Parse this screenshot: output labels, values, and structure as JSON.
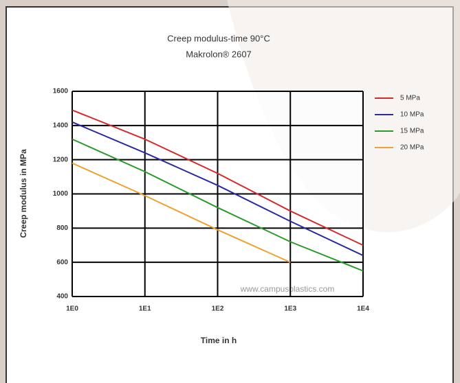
{
  "chart_data": {
    "type": "line",
    "title": "Creep modulus-time 90°C",
    "subtitle": "Makrolon® 2607",
    "x_label": "Time in h",
    "y_label": "Creep modulus in MPa",
    "watermark": "www.campusplastics.com",
    "x": [
      1,
      10,
      100,
      1000,
      10000
    ],
    "x_scale": "log",
    "xlim": [
      1,
      10000
    ],
    "xticks": [
      {
        "value": 1,
        "label": "1E0"
      },
      {
        "value": 10,
        "label": "1E1"
      },
      {
        "value": 100,
        "label": "1E2"
      },
      {
        "value": 1000,
        "label": "1E3"
      },
      {
        "value": 10000,
        "label": "1E4"
      }
    ],
    "ylim": [
      400,
      1600
    ],
    "yticks": [
      400,
      600,
      800,
      1000,
      1200,
      1400,
      1600
    ],
    "grid": true,
    "legend": "right",
    "series": [
      {
        "name": "5 MPa",
        "color": "#d62a2a",
        "values": [
          1490,
          1320,
          1120,
          900,
          700
        ]
      },
      {
        "name": "10 MPa",
        "color": "#2a2aa0",
        "values": [
          1420,
          1240,
          1050,
          840,
          640
        ]
      },
      {
        "name": "15 MPa",
        "color": "#2a9a2a",
        "values": [
          1320,
          1130,
          920,
          720,
          550
        ]
      },
      {
        "name": "20 MPa",
        "color": "#f0a030",
        "values": [
          1180,
          990,
          790,
          600,
          null
        ]
      }
    ]
  }
}
